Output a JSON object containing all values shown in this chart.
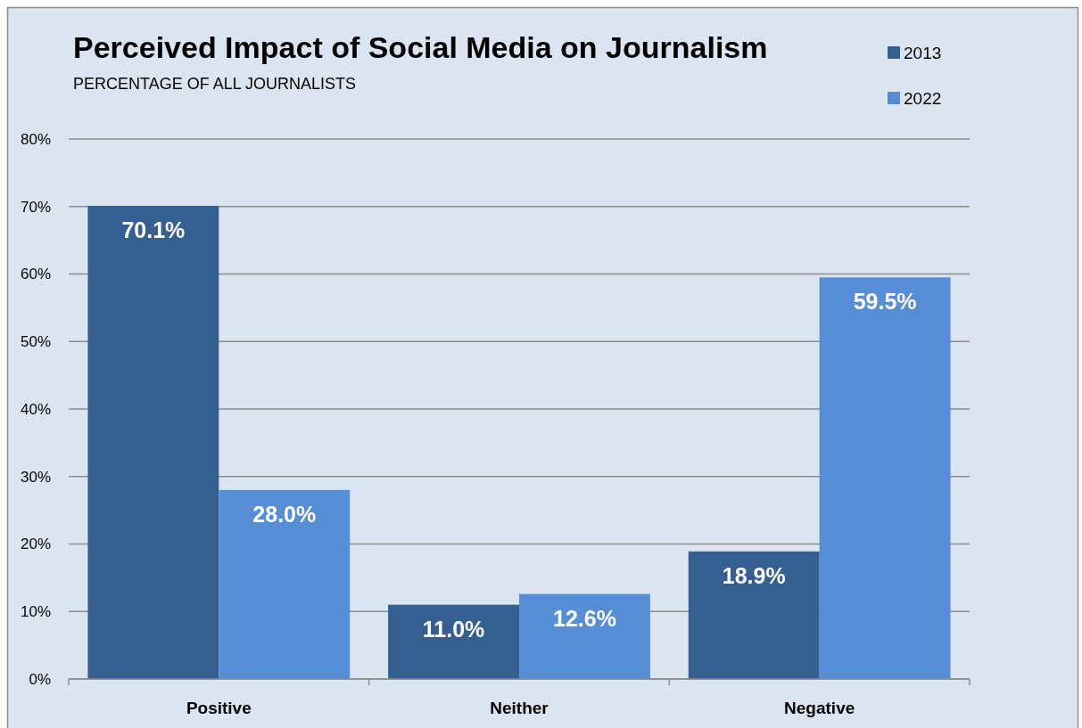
{
  "chart_data": {
    "type": "bar",
    "title": "Perceived Impact of Social Media on Journalism",
    "subtitle": "PERCENTAGE OF ALL JOURNALISTS",
    "categories": [
      "Positive",
      "Neither",
      "Negative"
    ],
    "series": [
      {
        "name": "2013",
        "color": "#355f91",
        "values": [
          70.1,
          11.0,
          18.9
        ],
        "value_labels": [
          "70.1%",
          "11.0%",
          "18.9%"
        ]
      },
      {
        "name": "2022",
        "color": "#558ed5",
        "values": [
          28.0,
          12.6,
          59.5
        ],
        "value_labels": [
          "28.0%",
          "12.6%",
          "59.5%"
        ]
      }
    ],
    "ylim": [
      0,
      80
    ],
    "yticks": [
      {
        "value": 0,
        "label": "0%"
      },
      {
        "value": 10,
        "label": "10%"
      },
      {
        "value": 20,
        "label": "20%"
      },
      {
        "value": 30,
        "label": "30%"
      },
      {
        "value": 40,
        "label": "40%"
      },
      {
        "value": 50,
        "label": "50%"
      },
      {
        "value": 60,
        "label": "60%"
      },
      {
        "value": 70,
        "label": "70%"
      },
      {
        "value": 80,
        "label": "80%"
      }
    ],
    "grid": "y",
    "legend": "top right"
  }
}
